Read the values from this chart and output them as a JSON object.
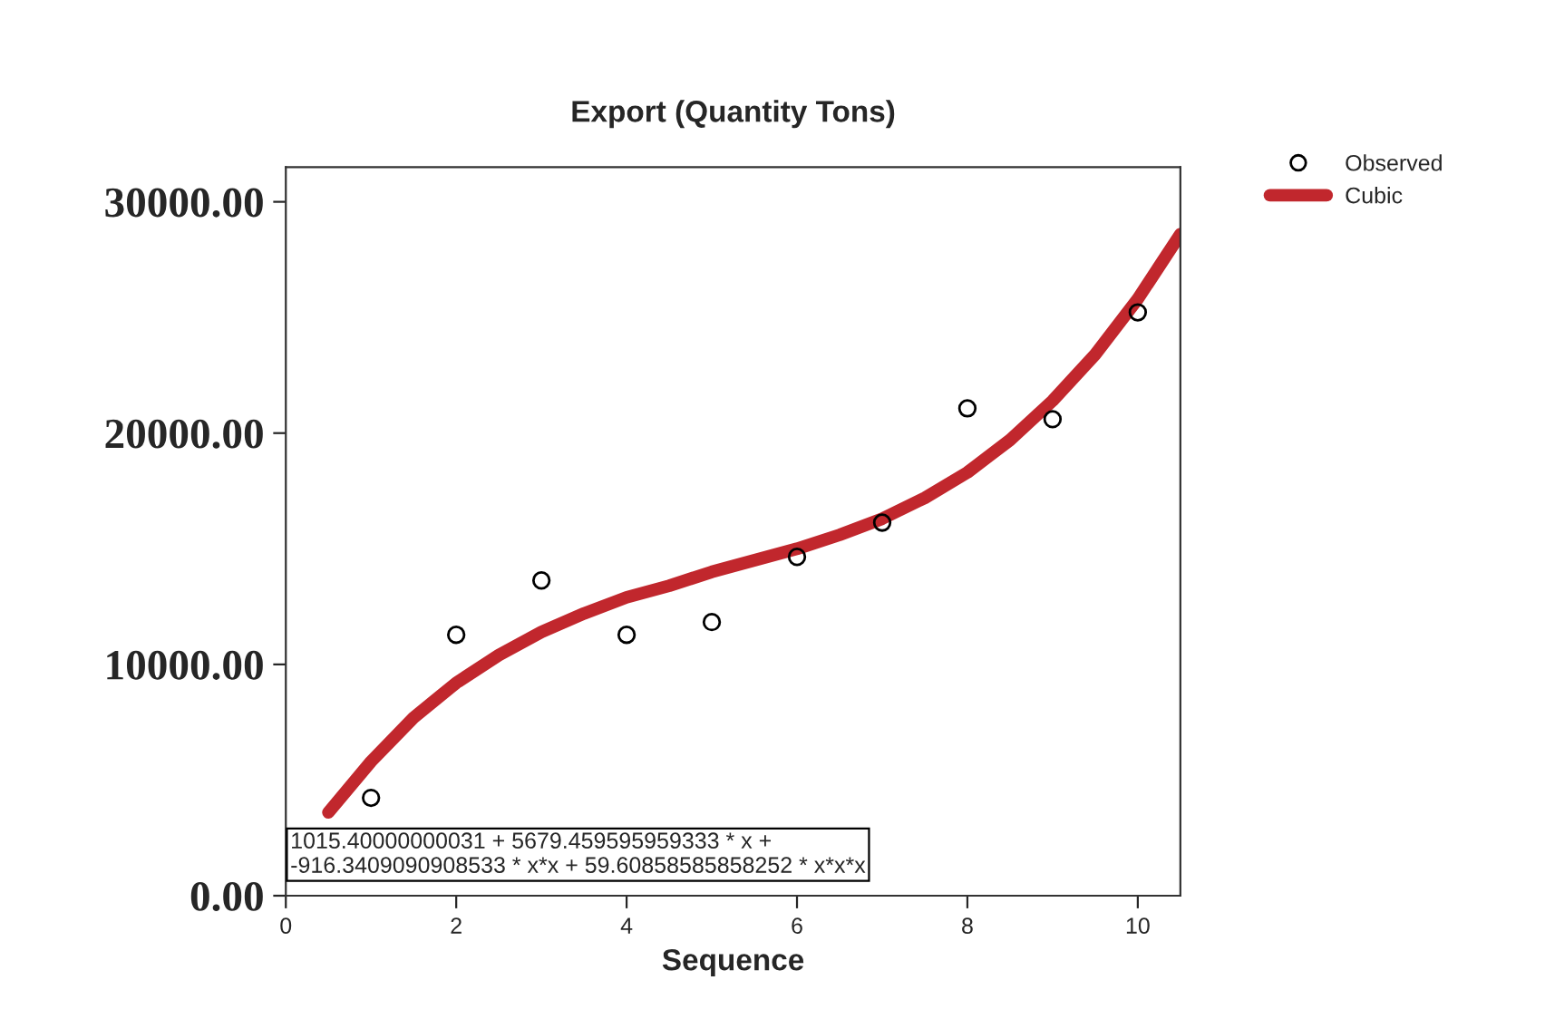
{
  "chart_data": {
    "type": "scatter",
    "title": "Export (Quantity Tons)",
    "xlabel": "Sequence",
    "xlim": [
      0,
      10.5
    ],
    "xticks": [
      0,
      2,
      4,
      6,
      8,
      10
    ],
    "ylim": [
      0,
      31500
    ],
    "yticks": [
      {
        "value": 0,
        "label": "0.00"
      },
      {
        "value": 10000,
        "label": "10000.00"
      },
      {
        "value": 20000,
        "label": "20000.00"
      },
      {
        "value": 30000,
        "label": "30000.00"
      }
    ],
    "grid": false,
    "legend": "top right",
    "annotations": [
      "1015.40000000031 + 5679.459595959333 * x +\n-916.3409090908533 * x*x + 59.60858585858252 * x*x*x"
    ],
    "series": [
      {
        "name": "Observed",
        "marker": "circle",
        "color": "#000000",
        "x": [
          1,
          2,
          3,
          4,
          5,
          6,
          7,
          8,
          9,
          10
        ],
        "values": [
          4230,
          11280,
          13630,
          11280,
          11830,
          14650,
          16130,
          21070,
          20600,
          25220
        ]
      },
      {
        "name": "Cubic",
        "type": "line",
        "color": "#c1272d",
        "x": [
          0.5,
          1,
          1.5,
          2,
          2.5,
          3,
          3.5,
          4,
          4.5,
          5,
          5.5,
          6,
          6.5,
          7,
          7.5,
          8,
          8.5,
          9,
          9.5,
          10,
          10.5
        ],
        "values": [
          3600,
          5800,
          7700,
          9200,
          10400,
          11400,
          12200,
          12900,
          13400,
          14000,
          14500,
          15000,
          15600,
          16300,
          17200,
          18300,
          19700,
          21400,
          23400,
          25800,
          28600
        ]
      }
    ]
  }
}
